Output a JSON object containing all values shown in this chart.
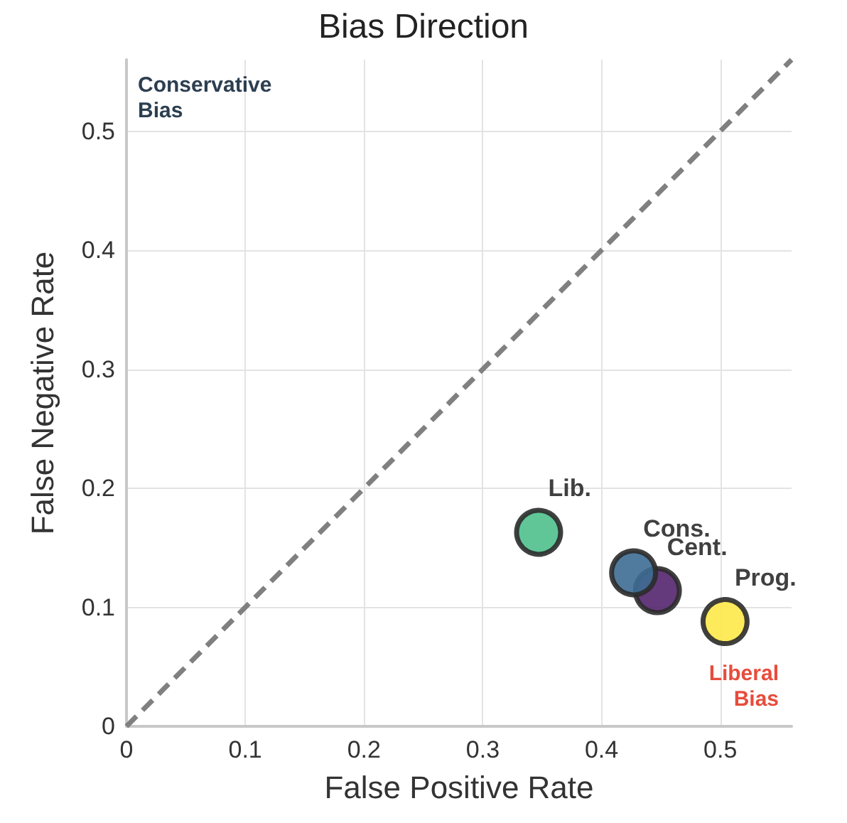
{
  "chart_data": {
    "type": "scatter",
    "title": "Bias Direction",
    "xlabel": "False Positive Rate",
    "ylabel": "False Negative Rate",
    "xlim": [
      0,
      0.56
    ],
    "ylim": [
      0,
      0.56
    ],
    "xticks": [
      0,
      0.1,
      0.2,
      0.3,
      0.4,
      0.5
    ],
    "yticks": [
      0,
      0.1,
      0.2,
      0.3,
      0.4,
      0.5
    ],
    "grid": true,
    "legend": false,
    "marker": "circle",
    "annotations": [
      "Conservative\nBias",
      "Liberal\nBias"
    ],
    "series": [
      {
        "type": "line",
        "x": [
          0,
          0.56
        ],
        "values": [
          0,
          0.56
        ],
        "color": "#808080",
        "line_style": "dashed",
        "marker": "none"
      },
      {
        "name": "Lib.",
        "x": [
          0.347
        ],
        "values": [
          0.163
        ],
        "color": "#4fc08d"
      },
      {
        "name": "Cent.",
        "x": [
          0.447
        ],
        "values": [
          0.114
        ],
        "color": "#54256e"
      },
      {
        "name": "Prog.",
        "x": [
          0.504
        ],
        "values": [
          0.088
        ],
        "color": "#fde94a"
      },
      {
        "name": "Cons.",
        "x": [
          0.427
        ],
        "values": [
          0.129
        ],
        "color": "#3d6d93"
      }
    ]
  }
}
